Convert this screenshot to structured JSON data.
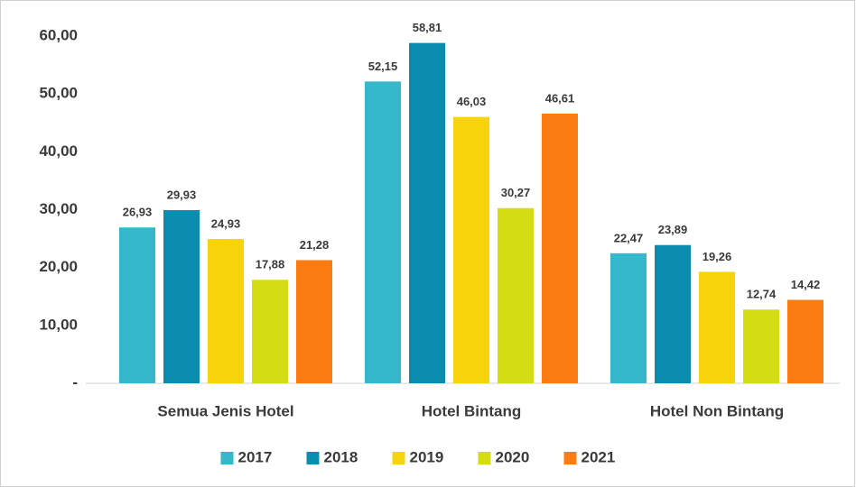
{
  "chart_data": {
    "type": "bar",
    "categories": [
      "Semua Jenis Hotel",
      "Hotel Bintang",
      "Hotel Non Bintang"
    ],
    "series": [
      {
        "name": "2017",
        "color": "#35b9ca",
        "values": [
          26.93,
          52.15,
          22.47
        ],
        "value_labels": [
          "26,93",
          "52,15",
          "22,47"
        ]
      },
      {
        "name": "2018",
        "color": "#0b8db0",
        "values": [
          29.93,
          58.81,
          23.89
        ],
        "value_labels": [
          "29,93",
          "58,81",
          "23,89"
        ]
      },
      {
        "name": "2019",
        "color": "#f7d30c",
        "values": [
          24.93,
          46.03,
          19.26
        ],
        "value_labels": [
          "24,93",
          "46,03",
          "19,26"
        ]
      },
      {
        "name": "2020",
        "color": "#d4dc14",
        "values": [
          17.88,
          30.27,
          12.74
        ],
        "value_labels": [
          "17,88",
          "30,27",
          "12,74"
        ]
      },
      {
        "name": "2021",
        "color": "#fb7c12",
        "values": [
          21.28,
          46.61,
          14.42
        ],
        "value_labels": [
          "21,28",
          "46,61",
          "14,42"
        ]
      }
    ],
    "ylim": [
      0,
      60
    ],
    "yticks": [
      {
        "value": 0,
        "label": "-"
      },
      {
        "value": 10,
        "label": "10,00"
      },
      {
        "value": 20,
        "label": "20,00"
      },
      {
        "value": 30,
        "label": "30,00"
      },
      {
        "value": 40,
        "label": "40,00"
      },
      {
        "value": 50,
        "label": "50,00"
      },
      {
        "value": 60,
        "label": "60,00"
      }
    ],
    "grid": false,
    "legend": "bottom"
  }
}
